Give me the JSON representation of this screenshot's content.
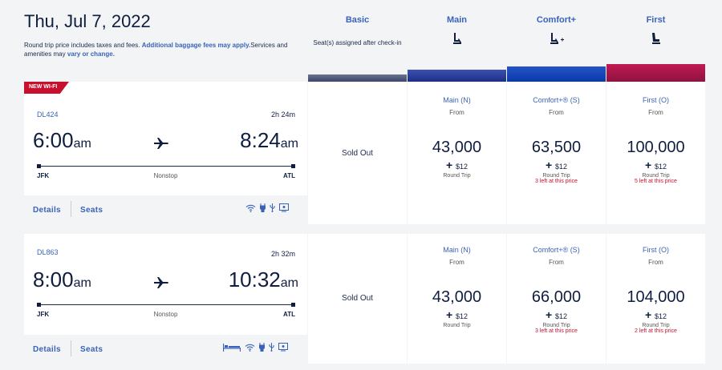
{
  "header": {
    "date": "Thu, Jul 7, 2022",
    "note_prefix": "Round trip price includes taxes and fees.",
    "note_link": "Additional baggage fees may apply.",
    "note_mid": "Services and amenities may",
    "note_link2": "vary or change."
  },
  "columns": [
    {
      "title": "Basic",
      "sub": "Seat(s) assigned after check-in",
      "icon": "none"
    },
    {
      "title": "Main",
      "sub": "",
      "icon": "seat-icon"
    },
    {
      "title": "Comfort+",
      "sub": "",
      "icon": "seat-plus-icon"
    },
    {
      "title": "First",
      "sub": "",
      "icon": "recliner-seat-icon"
    }
  ],
  "colors": {
    "accent": "#3a63b8",
    "navy": "#0f1d3f",
    "alert": "#c8102e",
    "first": "#b0164a"
  },
  "flights": [
    {
      "badge": "NEW WI-FI",
      "flight_no": "DL424",
      "duration": "2h 24m",
      "depart_time": "6:00",
      "depart_ampm": "am",
      "arrive_time": "8:24",
      "arrive_ampm": "am",
      "origin": "JFK",
      "destination": "ATL",
      "stops": "Nonstop",
      "details": "Details",
      "seats": "Seats",
      "amenities": [
        "wifi-icon",
        "power-icon",
        "usb-icon",
        "screen-icon"
      ],
      "basic": "Sold Out",
      "fares": [
        {
          "name": "Main (N)",
          "from": "From",
          "miles": "43,000",
          "tax": "$12",
          "trip": "Round Trip",
          "left": ""
        },
        {
          "name": "Comfort+® (S)",
          "from": "From",
          "miles": "63,500",
          "tax": "$12",
          "trip": "Round Trip",
          "left": "3 left at this price"
        },
        {
          "name": "First (O)",
          "from": "From",
          "miles": "100,000",
          "tax": "$12",
          "trip": "Round Trip",
          "left": "5 left at this price"
        }
      ]
    },
    {
      "badge": "",
      "flight_no": "DL863",
      "duration": "2h 32m",
      "depart_time": "8:00",
      "depart_ampm": "am",
      "arrive_time": "10:32",
      "arrive_ampm": "am",
      "origin": "JFK",
      "destination": "ATL",
      "stops": "Nonstop",
      "details": "Details",
      "seats": "Seats",
      "amenities": [
        "flat-bed-icon",
        "wifi-icon",
        "power-icon",
        "usb-icon",
        "screen-icon"
      ],
      "basic": "Sold Out",
      "fares": [
        {
          "name": "Main (N)",
          "from": "From",
          "miles": "43,000",
          "tax": "$12",
          "trip": "Round Trip",
          "left": ""
        },
        {
          "name": "Comfort+® (S)",
          "from": "From",
          "miles": "66,000",
          "tax": "$12",
          "trip": "Round Trip",
          "left": "3 left at this price"
        },
        {
          "name": "First (O)",
          "from": "From",
          "miles": "104,000",
          "tax": "$12",
          "trip": "Round Trip",
          "left": "2 left at this price"
        }
      ]
    }
  ]
}
